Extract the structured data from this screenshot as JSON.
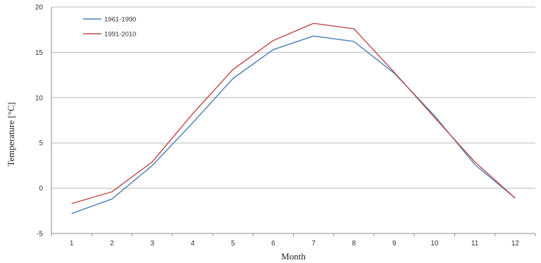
{
  "chart_data": {
    "type": "line",
    "title": "",
    "xlabel": "Month",
    "ylabel": "Temperature  [°C]",
    "x": [
      1,
      2,
      3,
      4,
      5,
      6,
      7,
      8,
      9,
      10,
      11,
      12
    ],
    "xlim": [
      0.5,
      12.5
    ],
    "ylim": [
      -5,
      20
    ],
    "yticks": [
      -5,
      0,
      5,
      10,
      15,
      20
    ],
    "grid": "horizontal",
    "legend": "top-left",
    "series": [
      {
        "name": "1961-1990",
        "color": "#4a7ebb",
        "values": [
          -2.8,
          -1.2,
          2.5,
          7.2,
          12.1,
          15.3,
          16.8,
          16.2,
          12.7,
          8.0,
          2.6,
          -1.1
        ]
      },
      {
        "name": "1991-2010",
        "color": "#be4b48",
        "values": [
          -1.7,
          -0.4,
          2.9,
          8.2,
          13.1,
          16.3,
          18.2,
          17.6,
          12.8,
          7.8,
          2.9,
          -1.1
        ]
      }
    ]
  }
}
